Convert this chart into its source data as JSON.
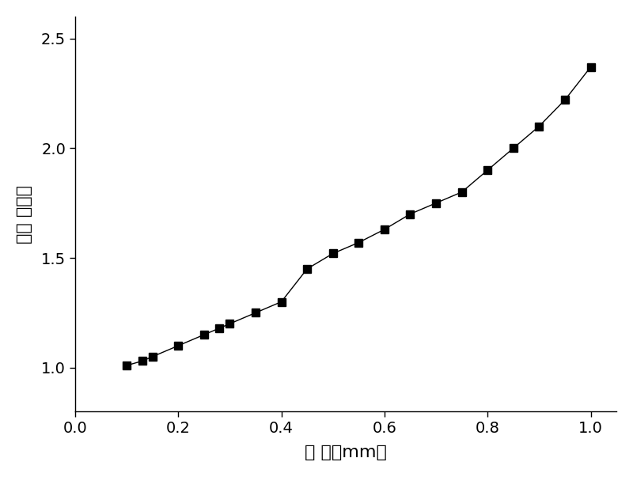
{
  "x": [
    0.1,
    0.13,
    0.15,
    0.2,
    0.25,
    0.28,
    0.3,
    0.35,
    0.4,
    0.45,
    0.5,
    0.55,
    0.6,
    0.65,
    0.7,
    0.75,
    0.8,
    0.85,
    0.9,
    0.95,
    1.0
  ],
  "y": [
    1.01,
    1.03,
    1.05,
    1.1,
    1.15,
    1.18,
    1.2,
    1.25,
    1.3,
    1.45,
    1.52,
    1.57,
    1.63,
    1.7,
    1.75,
    1.8,
    1.9,
    2.0,
    2.1,
    2.22,
    2.37
  ],
  "xlabel": "半 径（mm）",
  "ylabel": "等效 折射率",
  "xlim": [
    0.0,
    1.05
  ],
  "ylim": [
    0.8,
    2.6
  ],
  "xticks": [
    0.0,
    0.2,
    0.4,
    0.6,
    0.8,
    1.0
  ],
  "yticks": [
    1.0,
    1.5,
    2.0,
    2.5
  ],
  "line_color": "#000000",
  "marker": "s",
  "marker_color": "#000000",
  "marker_size": 7,
  "line_width": 1.0,
  "xlabel_fontsize": 16,
  "ylabel_fontsize": 16,
  "tick_fontsize": 14,
  "background_color": "#ffffff",
  "cjk_font": "Noto Sans CJK SC"
}
